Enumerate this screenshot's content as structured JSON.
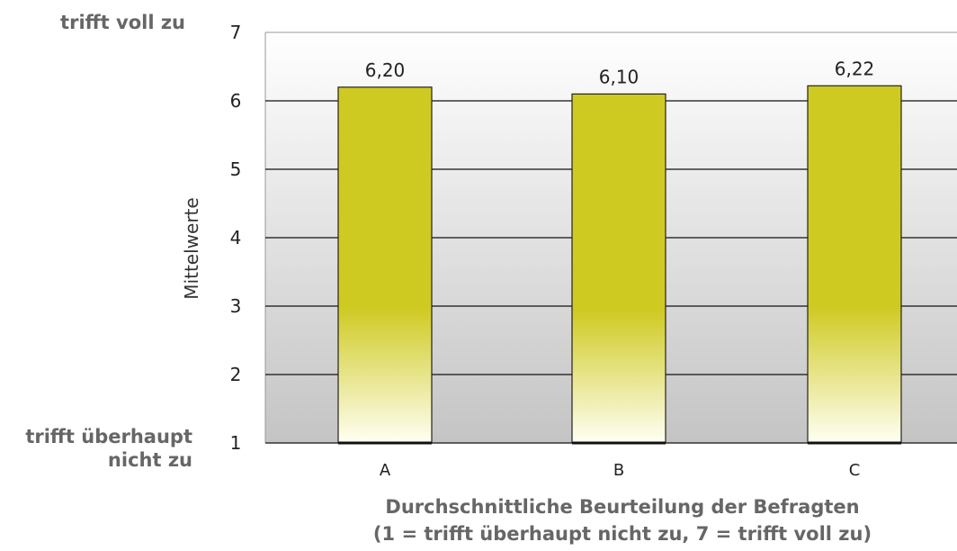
{
  "chart_data": {
    "type": "bar",
    "categories": [
      "A",
      "B",
      "C"
    ],
    "values": [
      6.2,
      6.1,
      6.22
    ],
    "data_labels": [
      "6,20",
      "6,10",
      "6,22"
    ],
    "ylabel": "Mittelwerte",
    "ylim": [
      1,
      7
    ],
    "yticks": [
      "1",
      "2",
      "3",
      "4",
      "5",
      "6",
      "7"
    ],
    "grid": true,
    "scale_top_label": "trifft voll zu",
    "scale_bottom_label": "trifft überhaupt nicht zu",
    "caption_line1": "Durchschnittliche Beurteilung der Befragten",
    "caption_line2": "(1 = trifft überhaupt nicht zu, 7 = trifft voll zu)"
  },
  "colors": {
    "bar": "#cfca22",
    "bar_fade": "#fffff4",
    "plot_top": "#ffffff",
    "plot_bottom": "#c4c4c4",
    "text": "#666666"
  }
}
